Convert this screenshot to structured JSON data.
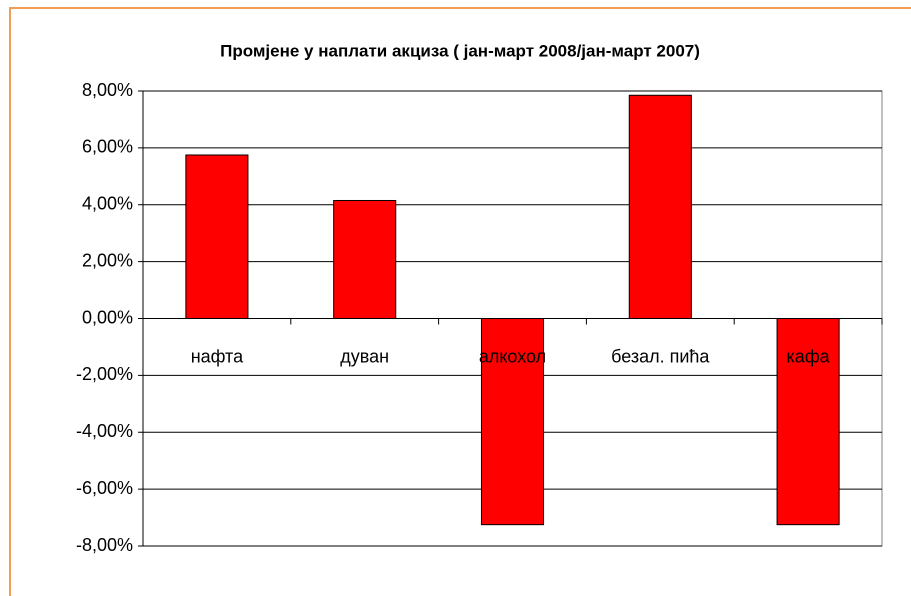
{
  "chart_data": {
    "type": "bar",
    "title": "Промјене у наплати акциза ( јан-март 2008/јан-март 2007)",
    "categories": [
      "нафта",
      "дуван",
      "алкохол",
      "безал. пића",
      "кафа"
    ],
    "values": [
      5.75,
      4.15,
      -7.25,
      7.85,
      -7.25
    ],
    "color": "#ff0000",
    "ylim": [
      -8,
      8
    ],
    "yticks": [
      {
        "value": -8,
        "label": "-8,00%"
      },
      {
        "value": -6,
        "label": "-6,00%"
      },
      {
        "value": -4,
        "label": "-4,00%"
      },
      {
        "value": -2,
        "label": "-2,00%"
      },
      {
        "value": 0,
        "label": "0,00%"
      },
      {
        "value": 2,
        "label": "2,00%"
      },
      {
        "value": 4,
        "label": "4,00%"
      },
      {
        "value": 6,
        "label": "6,00%"
      },
      {
        "value": 8,
        "label": "8,00%"
      }
    ],
    "grid": true
  }
}
